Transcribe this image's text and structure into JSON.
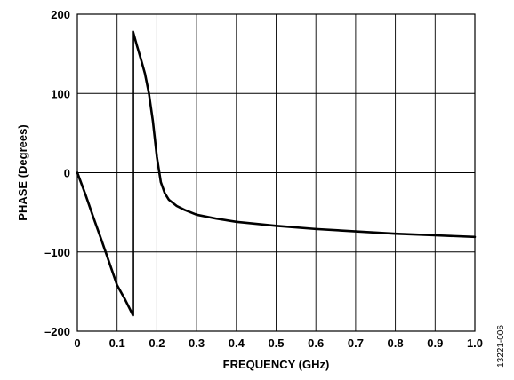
{
  "chart_data": {
    "type": "line",
    "title": "",
    "xlabel": "FREQUENCY (GHz)",
    "ylabel": "PHASE (Degrees)",
    "xlim": [
      0,
      1.0
    ],
    "ylim": [
      -200,
      200
    ],
    "x_ticks": [
      0,
      0.1,
      0.2,
      0.3,
      0.4,
      0.5,
      0.6,
      0.7,
      0.8,
      0.9,
      1.0
    ],
    "x_tick_labels": [
      "0",
      "0.1",
      "0.2",
      "0.3",
      "0.4",
      "0.5",
      "0.6",
      "0.7",
      "0.8",
      "0.9",
      "1.0"
    ],
    "y_ticks": [
      -200,
      -100,
      0,
      100,
      200
    ],
    "y_tick_labels": [
      "–200",
      "–100",
      "0",
      "100",
      "200"
    ],
    "grid": true,
    "line_color": "#000000",
    "series": [
      {
        "x": [
          0,
          0.02,
          0.04,
          0.06,
          0.08,
          0.1,
          0.12,
          0.14,
          0.14,
          0.15,
          0.16,
          0.17,
          0.18,
          0.19,
          0.2,
          0.21,
          0.22,
          0.23,
          0.25,
          0.27,
          0.3,
          0.35,
          0.4,
          0.5,
          0.6,
          0.7,
          0.8,
          0.9,
          1.0
        ],
        "y": [
          0,
          -27,
          -56,
          -84,
          -113,
          -142,
          -160,
          -180,
          178,
          160,
          143,
          125,
          100,
          65,
          20,
          -12,
          -26,
          -34,
          -42,
          -47,
          -53,
          -58,
          -62,
          -67,
          -71,
          -74,
          -77,
          -79,
          -81
        ]
      }
    ]
  },
  "figure_id": "13221-006"
}
